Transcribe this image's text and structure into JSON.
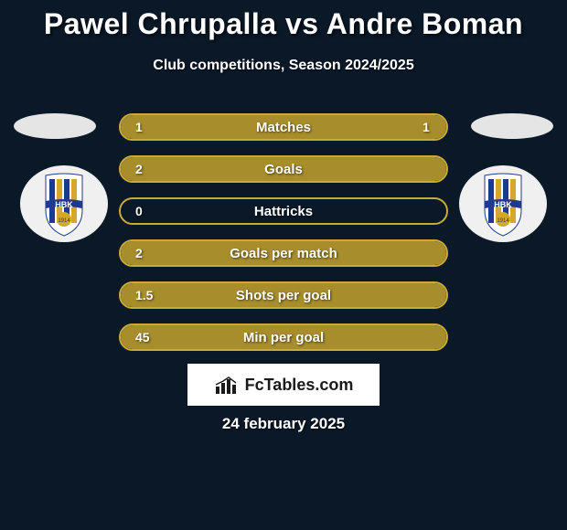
{
  "header": {
    "title": "Pawel Chrupalla vs Andre Boman",
    "subtitle": "Club competitions, Season 2024/2025"
  },
  "colors": {
    "background": "#0a1828",
    "accent": "#a78d2b",
    "accent_border": "#c9ab3a",
    "ellipse": "#e5e5e5",
    "text": "#ffffff",
    "logo_bg": "#ffffff",
    "logo_text": "#1a1a1a",
    "badge_stripe_blue": "#1e3a8a",
    "badge_stripe_yellow": "#d4a82a",
    "badge_bg": "#f0f0f0"
  },
  "club": {
    "text": "HBK",
    "year": "1914"
  },
  "stats": [
    {
      "label": "Matches",
      "left_value": "1",
      "right_value": "1",
      "left_fill_pct": 50,
      "right_fill_pct": 50
    },
    {
      "label": "Goals",
      "left_value": "2",
      "right_value": "",
      "left_fill_pct": 100,
      "right_fill_pct": 0
    },
    {
      "label": "Hattricks",
      "left_value": "0",
      "right_value": "",
      "left_fill_pct": 0,
      "right_fill_pct": 0
    },
    {
      "label": "Goals per match",
      "left_value": "2",
      "right_value": "",
      "left_fill_pct": 100,
      "right_fill_pct": 0
    },
    {
      "label": "Shots per goal",
      "left_value": "1.5",
      "right_value": "",
      "left_fill_pct": 100,
      "right_fill_pct": 0
    },
    {
      "label": "Min per goal",
      "left_value": "45",
      "right_value": "",
      "left_fill_pct": 100,
      "right_fill_pct": 0
    }
  ],
  "footer": {
    "brand": "FcTables.com",
    "date": "24 february 2025"
  },
  "styling": {
    "title_fontsize": 32,
    "subtitle_fontsize": 16,
    "stat_row_height": 30,
    "stat_row_gap": 16,
    "stat_row_width": 360,
    "stat_border_radius": 15,
    "stat_font_size": 15,
    "ellipse_width": 90,
    "ellipse_height": 28,
    "badge_size": 100
  }
}
